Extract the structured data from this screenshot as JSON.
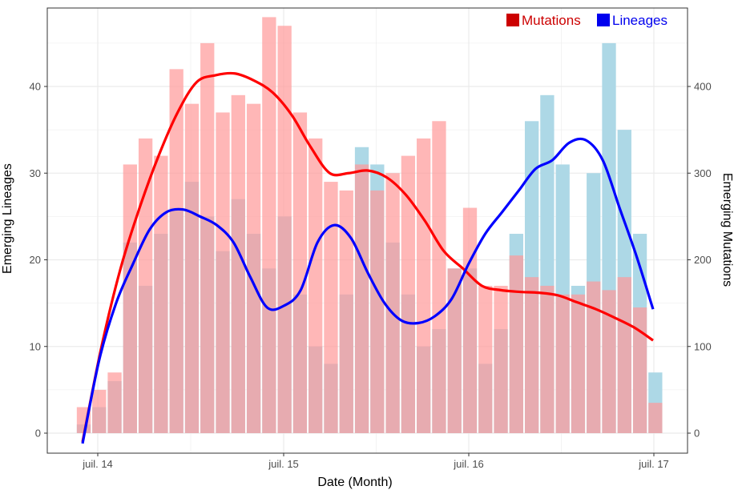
{
  "chart_data": {
    "type": "bar",
    "xlabel": "Date (Month)",
    "ylabel": "Emerging Lineages",
    "y2label": "Emerging Mutations",
    "x_ticks": [
      "juil. 14",
      "juil. 15",
      "juil. 16",
      "juil. 17"
    ],
    "y_ticks": [
      "0",
      "10",
      "20",
      "30",
      "40"
    ],
    "y2_ticks": [
      "0",
      "100",
      "200",
      "300",
      "400"
    ],
    "ylim": [
      -1.5,
      49
    ],
    "y2lim": [
      -15,
      490
    ],
    "grid": true,
    "legend_position": "top-right",
    "categories": [
      "2014-06",
      "2014-07",
      "2014-08",
      "2014-09",
      "2014-10",
      "2014-11",
      "2014-12",
      "2015-01",
      "2015-02",
      "2015-03",
      "2015-04",
      "2015-05",
      "2015-06",
      "2015-07",
      "2015-08",
      "2015-09",
      "2015-10",
      "2015-11",
      "2015-12",
      "2016-01",
      "2016-02",
      "2016-03",
      "2016-04",
      "2016-05",
      "2016-06",
      "2016-07",
      "2016-08",
      "2016-09",
      "2016-10",
      "2016-11",
      "2016-12",
      "2017-01",
      "2017-02",
      "2017-03",
      "2017-04",
      "2017-05",
      "2017-06",
      "2017-07"
    ],
    "series": [
      {
        "name": "Lineages",
        "axis": "left",
        "color": "#add8e6",
        "values": [
          1,
          3,
          6,
          22,
          17,
          23,
          26,
          29,
          25,
          21,
          27,
          23,
          19,
          25,
          16,
          10,
          8,
          16,
          33,
          31,
          22,
          16,
          10,
          12,
          19,
          19,
          8,
          12,
          23,
          36,
          39,
          31,
          17,
          30,
          45,
          35,
          23,
          7
        ]
      },
      {
        "name": "Mutations",
        "axis": "right",
        "color": "#ff9999",
        "values": [
          3,
          5,
          7,
          31,
          34,
          32,
          42,
          38,
          45,
          37,
          39,
          38,
          48,
          47,
          37,
          34,
          29,
          28,
          31,
          28,
          30,
          32,
          34,
          36,
          19,
          26,
          17,
          17,
          20.5,
          18,
          17,
          16,
          16,
          17.5,
          16.5,
          18,
          14.5,
          3.5
        ],
        "display_scale": 10
      }
    ],
    "smooth_lines": [
      {
        "name": "Lineages",
        "color": "#0000ff",
        "y": [
          -1.2,
          8.5,
          15,
          19.5,
          23.5,
          25.5,
          25.8,
          25,
          24,
          22,
          18,
          14.5,
          14.7,
          16.5,
          22,
          24,
          22.5,
          18.5,
          15,
          13,
          12.7,
          13.5,
          15.5,
          19.5,
          23,
          25.5,
          28,
          30.5,
          31.5,
          33.5,
          33.8,
          31.5,
          26,
          20.5,
          14.3
        ]
      },
      {
        "name": "Mutations",
        "color": "#ff0000",
        "y": [
          -10,
          100,
          190,
          260,
          320,
          370,
          405,
          413,
          415,
          407,
          393,
          367,
          330,
          300,
          300,
          303,
          295,
          275,
          245,
          210,
          190,
          170,
          165,
          163,
          162,
          159,
          151,
          143,
          133,
          122,
          107
        ]
      }
    ]
  }
}
